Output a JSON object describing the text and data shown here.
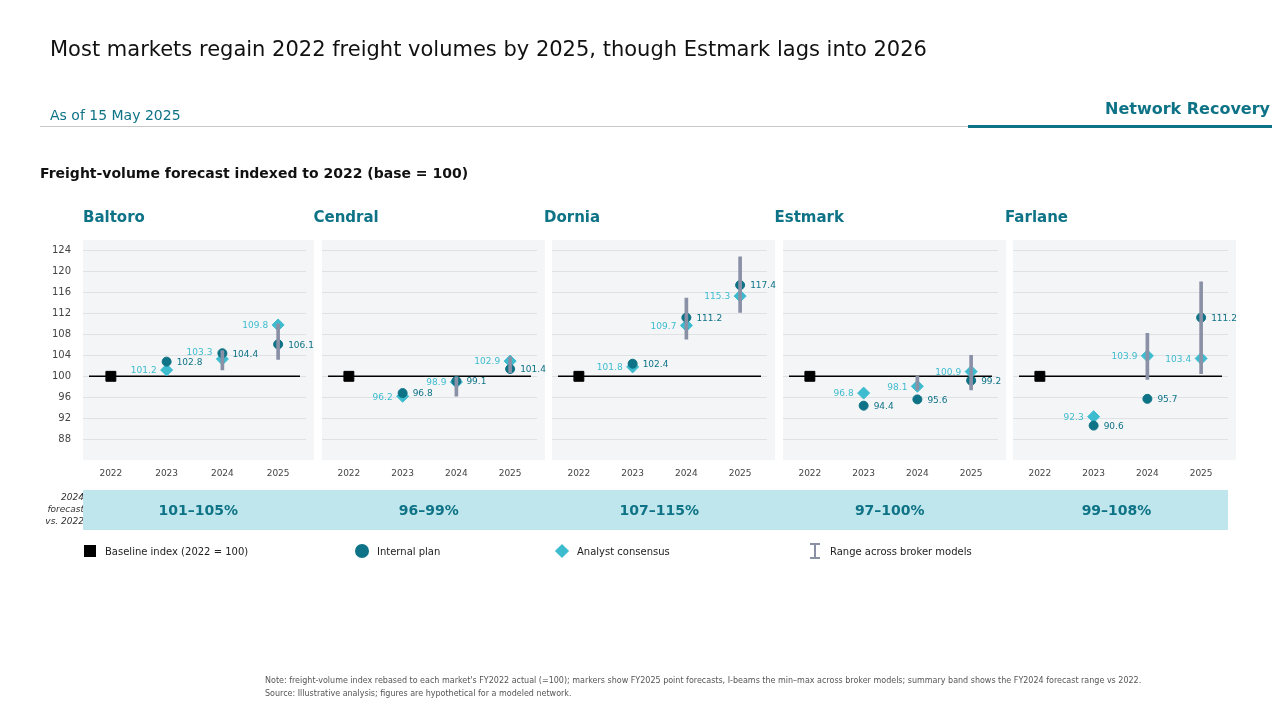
{
  "chart_data": [
    {
      "type": "other",
      "title": "Most markets regain 2022 freight volumes by 2025, though Estmark lags into 2026",
      "subtitle": "As of 15 May 2025",
      "annotations": [
        "Network Recovery",
        "Freight-volume forecast indexed to 2022 (base = 100)",
        "2024 forecast vs. 2022",
        "Note: freight-volume index rebased to each market's FY2022 actual (=100); markers show FY2025 point forecasts, I-beams the min–max across broker models; summary band shows the FY2024 forecast range vs 2022.",
        "Source: Illustrative analysis; figures are hypothetical for a modeled network."
      ]
    },
    {
      "type": "scatter",
      "title": "Baltoro",
      "categories": [
        "2022",
        "2023",
        "2024",
        "2025"
      ],
      "ylim": [
        84,
        126
      ],
      "yticks": [
        88,
        92,
        96,
        100,
        104,
        108,
        112,
        116,
        120,
        124
      ],
      "grid": "y",
      "legend": "bottom",
      "annotations": [
        "101–105%"
      ],
      "ref_lines": [
        {
          "axis": "y",
          "value": 100,
          "color": "#000000"
        }
      ],
      "series": [
        {
          "name": "Baseline index (2022 = 100)",
          "type": "scatter",
          "marker": "square",
          "color": "#000000",
          "values": [
            100,
            null,
            null,
            null
          ]
        },
        {
          "name": "Internal plan",
          "type": "scatter",
          "marker": "circle",
          "color": "#0e7386",
          "values": [
            null,
            102.8,
            104.4,
            106.1
          ],
          "value_labels": [
            null,
            "102.8",
            "104.4",
            "106.1"
          ]
        },
        {
          "name": "Analyst consensus",
          "type": "scatter",
          "marker": "diamond",
          "color": "#3dbccf",
          "values": [
            null,
            101.2,
            103.3,
            109.8
          ],
          "value_labels": [
            null,
            "101.2",
            "103.3",
            "109.8"
          ]
        },
        {
          "name": "Range across broker models",
          "type": "bar",
          "color": "#8a90a6",
          "base": [
            null,
            null,
            101.2,
            103.2
          ],
          "values": [
            null,
            null,
            3.7,
            6.8
          ]
        }
      ]
    },
    {
      "type": "scatter",
      "title": "Cendral",
      "categories": [
        "2022",
        "2023",
        "2024",
        "2025"
      ],
      "ylim": [
        84,
        126
      ],
      "yticks": [
        88,
        92,
        96,
        100,
        104,
        108,
        112,
        116,
        120,
        124
      ],
      "grid": "y",
      "tick_labels": "x",
      "annotations": [
        "96–99%"
      ],
      "ref_lines": [
        {
          "axis": "y",
          "value": 100,
          "color": "#000000"
        }
      ],
      "series": [
        {
          "type": "scatter",
          "marker": "square",
          "color": "#000000",
          "values": [
            100,
            null,
            null,
            null
          ]
        },
        {
          "type": "scatter",
          "marker": "circle",
          "color": "#0e7386",
          "values": [
            null,
            96.8,
            99.1,
            101.4
          ],
          "value_labels": [
            null,
            "96.8",
            "99.1",
            "101.4"
          ]
        },
        {
          "type": "scatter",
          "marker": "diamond",
          "color": "#3dbccf",
          "values": [
            null,
            96.2,
            98.9,
            102.9
          ],
          "value_labels": [
            null,
            "96.2",
            "98.9",
            "102.9"
          ]
        },
        {
          "type": "bar",
          "color": "#8a90a6",
          "base": [
            null,
            null,
            96.2,
            100.7
          ],
          "values": [
            null,
            null,
            3.6,
            3.0
          ]
        }
      ]
    },
    {
      "type": "scatter",
      "title": "Dornia",
      "categories": [
        "2022",
        "2023",
        "2024",
        "2025"
      ],
      "ylim": [
        84,
        126
      ],
      "yticks": [
        88,
        92,
        96,
        100,
        104,
        108,
        112,
        116,
        120,
        124
      ],
      "grid": "y",
      "tick_labels": "x",
      "annotations": [
        "107–115%"
      ],
      "ref_lines": [
        {
          "axis": "y",
          "value": 100,
          "color": "#000000"
        }
      ],
      "series": [
        {
          "type": "scatter",
          "marker": "square",
          "color": "#000000",
          "values": [
            100,
            null,
            null,
            null
          ]
        },
        {
          "type": "scatter",
          "marker": "circle",
          "color": "#0e7386",
          "values": [
            null,
            102.4,
            111.2,
            117.4
          ],
          "value_labels": [
            null,
            "102.4",
            "111.2",
            "117.4"
          ]
        },
        {
          "type": "scatter",
          "marker": "diamond",
          "color": "#3dbccf",
          "values": [
            null,
            101.8,
            109.7,
            115.3
          ],
          "value_labels": [
            null,
            "101.8",
            "109.7",
            "115.3"
          ]
        },
        {
          "type": "bar",
          "color": "#8a90a6",
          "base": [
            null,
            null,
            107.1,
            112.2
          ],
          "values": [
            null,
            null,
            7.8,
            10.6
          ]
        }
      ]
    },
    {
      "type": "scatter",
      "title": "Estmark",
      "categories": [
        "2022",
        "2023",
        "2024",
        "2025"
      ],
      "ylim": [
        84,
        126
      ],
      "yticks": [
        88,
        92,
        96,
        100,
        104,
        108,
        112,
        116,
        120,
        124
      ],
      "grid": "y",
      "tick_labels": "x",
      "annotations": [
        "97–100%"
      ],
      "ref_lines": [
        {
          "axis": "y",
          "value": 100,
          "color": "#000000"
        }
      ],
      "series": [
        {
          "type": "scatter",
          "marker": "square",
          "color": "#000000",
          "values": [
            100,
            null,
            null,
            null
          ]
        },
        {
          "type": "scatter",
          "marker": "circle",
          "color": "#0e7386",
          "values": [
            null,
            94.4,
            95.6,
            99.2
          ],
          "value_labels": [
            null,
            "94.4",
            "95.6",
            "99.2"
          ]
        },
        {
          "type": "scatter",
          "marker": "diamond",
          "color": "#3dbccf",
          "values": [
            null,
            96.8,
            98.1,
            100.9
          ],
          "value_labels": [
            null,
            "96.8",
            "98.1",
            "100.9"
          ]
        },
        {
          "type": "bar",
          "color": "#8a90a6",
          "base": [
            null,
            null,
            97.4,
            97.4
          ],
          "values": [
            null,
            null,
            2.7,
            6.6
          ]
        }
      ]
    },
    {
      "type": "scatter",
      "title": "Farlane",
      "categories": [
        "2022",
        "2023",
        "2024",
        "2025"
      ],
      "ylim": [
        84,
        126
      ],
      "yticks": [
        88,
        92,
        96,
        100,
        104,
        108,
        112,
        116,
        120,
        124
      ],
      "grid": "y",
      "tick_labels": "x",
      "annotations": [
        "99–108%"
      ],
      "ref_lines": [
        {
          "axis": "y",
          "value": 100,
          "color": "#000000"
        }
      ],
      "series": [
        {
          "type": "scatter",
          "marker": "square",
          "color": "#000000",
          "values": [
            100,
            null,
            null,
            null
          ]
        },
        {
          "type": "scatter",
          "marker": "circle",
          "color": "#0e7386",
          "values": [
            null,
            90.6,
            95.7,
            111.2
          ],
          "value_labels": [
            null,
            "90.6",
            "95.7",
            "111.2"
          ]
        },
        {
          "type": "scatter",
          "marker": "diamond",
          "color": "#3dbccf",
          "values": [
            null,
            92.3,
            103.9,
            103.4
          ],
          "value_labels": [
            null,
            "92.3",
            "103.9",
            "103.4"
          ]
        },
        {
          "type": "bar",
          "color": "#8a90a6",
          "base": [
            null,
            null,
            99.4,
            100.5
          ],
          "values": [
            null,
            null,
            8.8,
            17.5
          ]
        }
      ]
    }
  ]
}
